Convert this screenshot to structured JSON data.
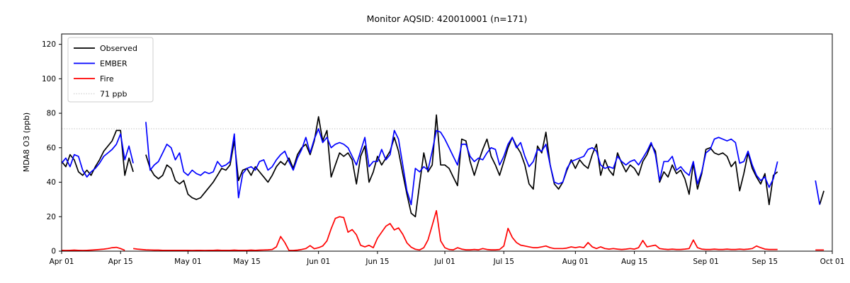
{
  "chart_data": {
    "type": "line",
    "title": "Monitor AQSID: 420010001 (n=171)",
    "ylabel": "MDA8 O3 (ppb)",
    "xlabel": "",
    "ylim": [
      0,
      126
    ],
    "yticks": [
      0,
      20,
      40,
      60,
      80,
      100,
      120
    ],
    "xtick_labels": [
      "Apr 01",
      "Apr 15",
      "May 01",
      "May 15",
      "Jun 01",
      "Jun 15",
      "Jul 01",
      "Jul 15",
      "Aug 01",
      "Aug 15",
      "Sep 01",
      "Sep 15",
      "Oct 01"
    ],
    "xtick_day_index": [
      0,
      14,
      30,
      44,
      61,
      75,
      91,
      105,
      122,
      136,
      153,
      167,
      183
    ],
    "x_months": [
      [
        "Apr",
        30
      ],
      [
        "May",
        31
      ],
      [
        "Jun",
        30
      ],
      [
        "Jul",
        31
      ],
      [
        "Aug",
        31
      ],
      [
        "Sep",
        30
      ],
      [
        "Oct",
        1
      ]
    ],
    "n_points_label": "n=171",
    "grid": false,
    "legend_position": "upper left",
    "threshold": {
      "value": 71,
      "label": "71 ppb",
      "color": "#d3d3d3",
      "style": "dotted"
    },
    "series": [
      {
        "name": "Observed",
        "color": "#000000",
        "values": [
          52,
          49,
          56,
          53,
          46,
          44,
          47,
          44,
          49,
          53,
          58,
          61,
          64,
          70,
          70,
          44,
          54,
          46,
          null,
          null,
          56,
          48,
          44,
          42,
          44,
          50,
          48,
          41,
          39,
          41,
          33,
          31,
          30,
          31,
          34,
          37,
          40,
          44,
          48,
          47,
          50,
          64,
          41,
          47,
          48,
          44,
          49,
          46,
          43,
          40,
          44,
          49,
          52,
          50,
          54,
          48,
          56,
          60,
          62,
          56,
          64,
          78,
          64,
          70,
          43,
          50,
          57,
          55,
          57,
          53,
          39,
          55,
          61,
          40,
          46,
          55,
          50,
          54,
          58,
          66,
          58,
          45,
          33,
          22,
          20,
          39,
          57,
          46,
          50,
          79,
          50,
          50,
          48,
          43,
          38,
          65,
          64,
          52,
          44,
          52,
          59,
          65,
          55,
          50,
          44,
          52,
          60,
          66,
          61,
          57,
          50,
          39,
          36,
          61,
          57,
          69,
          50,
          39,
          36,
          40,
          47,
          53,
          48,
          53,
          50,
          48,
          56,
          62,
          44,
          53,
          47,
          44,
          57,
          51,
          46,
          50,
          48,
          44,
          52,
          56,
          62,
          58,
          40,
          46,
          43,
          50,
          45,
          47,
          42,
          33,
          51,
          36,
          45,
          59,
          60,
          57,
          56,
          57,
          55,
          49,
          52,
          35,
          45,
          57,
          48,
          43,
          39,
          45,
          27,
          44,
          46,
          null,
          null,
          null,
          null,
          null,
          null,
          null,
          null,
          null,
          27,
          35,
          null,
          null
        ]
      },
      {
        "name": "EMBER",
        "color": "#0000ff",
        "values": [
          51,
          54,
          49,
          56,
          55,
          47,
          43,
          46,
          48,
          51,
          55,
          57,
          59,
          62,
          68,
          53,
          61,
          51,
          null,
          null,
          75,
          47,
          50,
          52,
          57,
          62,
          60,
          53,
          57,
          46,
          44,
          47,
          45,
          44,
          46,
          45,
          46,
          52,
          49,
          50,
          52,
          68,
          31,
          45,
          48,
          49,
          47,
          52,
          53,
          47,
          49,
          53,
          56,
          58,
          52,
          47,
          54,
          59,
          66,
          57,
          65,
          71,
          63,
          66,
          60,
          62,
          63,
          62,
          60,
          55,
          50,
          58,
          66,
          49,
          52,
          52,
          59,
          53,
          56,
          70,
          65,
          50,
          35,
          27,
          48,
          46,
          49,
          47,
          58,
          70,
          69,
          65,
          60,
          55,
          50,
          62,
          62,
          55,
          52,
          54,
          53,
          57,
          60,
          59,
          50,
          55,
          62,
          66,
          60,
          63,
          55,
          49,
          52,
          59,
          58,
          62,
          50,
          40,
          39,
          40,
          48,
          52,
          53,
          54,
          55,
          59,
          60,
          58,
          50,
          48,
          49,
          48,
          55,
          52,
          50,
          52,
          53,
          50,
          54,
          58,
          63,
          56,
          41,
          52,
          52,
          55,
          47,
          49,
          46,
          44,
          52,
          39,
          46,
          57,
          59,
          65,
          66,
          65,
          64,
          65,
          63,
          51,
          52,
          58,
          50,
          44,
          41,
          43,
          37,
          42,
          52,
          null,
          null,
          null,
          null,
          null,
          null,
          null,
          null,
          41,
          27,
          null,
          null,
          null
        ]
      },
      {
        "name": "Fire",
        "color": "#ff0000",
        "values": [
          0.5,
          0.4,
          0.5,
          0.6,
          0.5,
          0.4,
          0.5,
          0.6,
          0.8,
          1.0,
          1.2,
          1.5,
          2.0,
          2.2,
          1.5,
          0.5,
          null,
          1.5,
          1.2,
          1.0,
          0.8,
          0.7,
          0.6,
          0.6,
          0.5,
          0.5,
          0.5,
          0.5,
          0.5,
          0.5,
          0.5,
          0.4,
          0.5,
          0.5,
          0.4,
          0.5,
          0.5,
          0.6,
          0.5,
          0.5,
          0.5,
          0.6,
          0.5,
          0.5,
          0.5,
          0.6,
          0.5,
          0.6,
          0.7,
          0.8,
          1.0,
          2.5,
          8.5,
          5.0,
          0.4,
          0.4,
          0.6,
          1.0,
          1.5,
          3.2,
          1.4,
          2.0,
          3.0,
          6.0,
          13,
          19,
          20,
          19.5,
          11,
          12.5,
          9.5,
          3.4,
          2.5,
          3.4,
          2.0,
          7.5,
          11,
          14.5,
          16,
          12.3,
          13.5,
          9.8,
          4.8,
          2.3,
          1.1,
          0.7,
          2.0,
          6.5,
          15,
          23.5,
          6.0,
          2.0,
          1.0,
          0.8,
          2.0,
          1.2,
          0.8,
          0.8,
          1.0,
          0.8,
          1.5,
          1.0,
          0.8,
          0.8,
          1.0,
          3.0,
          13.2,
          8.0,
          5.0,
          3.5,
          3.0,
          2.5,
          2.0,
          2.0,
          2.5,
          3.0,
          2.0,
          1.5,
          1.5,
          1.5,
          1.8,
          2.5,
          2.0,
          2.5,
          2.0,
          5.0,
          2.5,
          1.5,
          2.5,
          1.5,
          1.2,
          1.5,
          1.2,
          1.0,
          1.2,
          1.5,
          1.2,
          2.0,
          6.2,
          2.5,
          3.0,
          3.5,
          1.5,
          1.2,
          1.0,
          1.2,
          1.0,
          1.0,
          1.2,
          1.5,
          6.5,
          2.0,
          1.2,
          1.0,
          1.0,
          1.2,
          1.0,
          1.0,
          1.2,
          1.0,
          1.0,
          1.2,
          1.0,
          1.2,
          1.5,
          3.0,
          2.0,
          1.2,
          1.0,
          1.0,
          1.0,
          null,
          null,
          null,
          null,
          null,
          null,
          null,
          null,
          0.7,
          0.7,
          0.7,
          null,
          null
        ]
      }
    ],
    "legend_entries": [
      {
        "label": "Observed",
        "color": "#000000",
        "style": "solid"
      },
      {
        "label": "EMBER",
        "color": "#0000ff",
        "style": "solid"
      },
      {
        "label": "Fire",
        "color": "#ff0000",
        "style": "solid"
      },
      {
        "label": "71 ppb",
        "color": "#d3d3d3",
        "style": "dotted"
      }
    ]
  },
  "layout_colors": {
    "background": "#ffffff",
    "axis": "#000000",
    "tick_label": "#000000",
    "legend_border": "#cccccc"
  }
}
